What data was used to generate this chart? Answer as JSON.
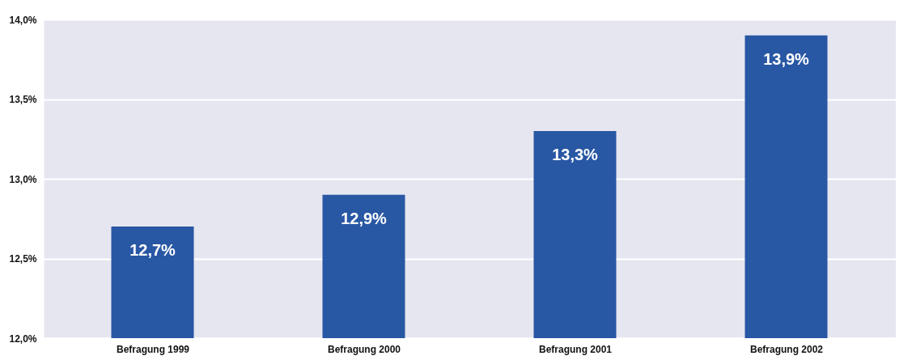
{
  "chart_data": {
    "type": "bar",
    "categories": [
      "Befragung 1999",
      "Befragung 2000",
      "Befragung 2001",
      "Befragung 2002"
    ],
    "series": [
      {
        "color": "#2857a4",
        "values": [
          12.7,
          12.9,
          13.3,
          13.9
        ],
        "value_labels": [
          "12,7%",
          "12,9%",
          "13,3%",
          "13,9%"
        ]
      }
    ],
    "ylim": [
      12.0,
      14.0
    ],
    "yticks": [
      {
        "value": 12.0,
        "label": "12,0%"
      },
      {
        "value": 12.5,
        "label": "12,5%"
      },
      {
        "value": 13.0,
        "label": "13,0%"
      },
      {
        "value": 13.5,
        "label": "13,5%"
      },
      {
        "value": 14.0,
        "label": "14,0%"
      }
    ],
    "grid": "y"
  }
}
